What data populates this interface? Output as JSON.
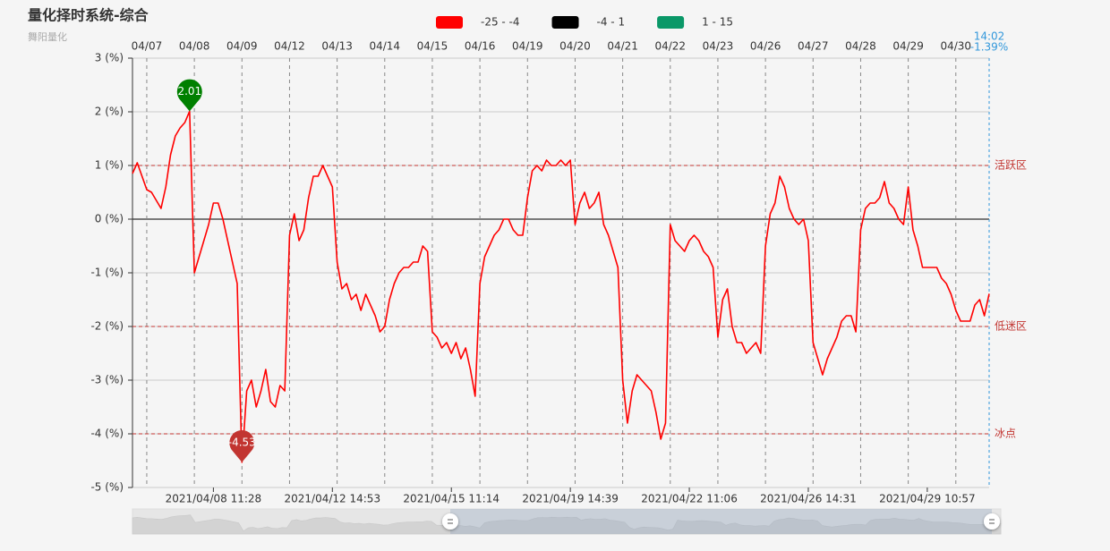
{
  "chart_data": {
    "type": "line",
    "title": "量化择时系统-综合",
    "subtitle": "舞阳量化",
    "categories": [
      null,
      null,
      null,
      null,
      null,
      null,
      null,
      null,
      null,
      null,
      null,
      null,
      null,
      null,
      null,
      null,
      null,
      "2021/04/08 11:28",
      null,
      null,
      null,
      null,
      null,
      null,
      null,
      null,
      null,
      null,
      null,
      null,
      null,
      null,
      null,
      null,
      null,
      null,
      null,
      null,
      null,
      null,
      null,
      null,
      "2021/04/12 14:53",
      null,
      null,
      null,
      null,
      null,
      null,
      null,
      null,
      null,
      null,
      null,
      null,
      null,
      null,
      null,
      null,
      null,
      null,
      null,
      null,
      null,
      null,
      null,
      null,
      "2021/04/15 11:14",
      null,
      null,
      null,
      null,
      null,
      null,
      null,
      null,
      null,
      null,
      null,
      null,
      null,
      null,
      null,
      null,
      null,
      null,
      null,
      null,
      null,
      null,
      null,
      null,
      "2021/04/19 14:39",
      null,
      null,
      null,
      null,
      null,
      null,
      null,
      null,
      null,
      null,
      null,
      null,
      null,
      null,
      null,
      null,
      null,
      null,
      null,
      null,
      null,
      null,
      null,
      null,
      "2021/04/22 11:06",
      null,
      null,
      null,
      null,
      null,
      null,
      null,
      null,
      null,
      null,
      null,
      null,
      null,
      null,
      null,
      null,
      null,
      null,
      null,
      null,
      null,
      null,
      null,
      null,
      "2021/04/26 14:31",
      null,
      null,
      null,
      null,
      null,
      null,
      null,
      null,
      null,
      null,
      null,
      null,
      null,
      null,
      null,
      null,
      null,
      null,
      null,
      null,
      null,
      null,
      null,
      null,
      "2021/04/29 10:57",
      null,
      null,
      null,
      null,
      null,
      null,
      null,
      null,
      null,
      null,
      null,
      null,
      null
    ],
    "day_labels": [
      null,
      null,
      null,
      "04/07",
      null,
      null,
      null,
      null,
      null,
      null,
      null,
      null,
      null,
      "04/08",
      null,
      null,
      null,
      null,
      null,
      null,
      null,
      null,
      null,
      "04/09",
      null,
      null,
      null,
      null,
      null,
      null,
      null,
      null,
      null,
      "04/12",
      null,
      null,
      null,
      null,
      null,
      null,
      null,
      null,
      null,
      "04/13",
      null,
      null,
      null,
      null,
      null,
      null,
      null,
      null,
      null,
      "04/14",
      null,
      null,
      null,
      null,
      null,
      null,
      null,
      null,
      null,
      "04/15",
      null,
      null,
      null,
      null,
      null,
      null,
      null,
      null,
      null,
      "04/16",
      null,
      null,
      null,
      null,
      null,
      null,
      null,
      null,
      null,
      "04/19",
      null,
      null,
      null,
      null,
      null,
      null,
      null,
      null,
      null,
      "04/20",
      null,
      null,
      null,
      null,
      null,
      null,
      null,
      null,
      null,
      "04/21",
      null,
      null,
      null,
      null,
      null,
      null,
      null,
      null,
      null,
      "04/22",
      null,
      null,
      null,
      null,
      null,
      null,
      null,
      null,
      null,
      "04/23",
      null,
      null,
      null,
      null,
      null,
      null,
      null,
      null,
      null,
      "04/26",
      null,
      null,
      null,
      null,
      null,
      null,
      null,
      null,
      null,
      "04/27",
      null,
      null,
      null,
      null,
      null,
      null,
      null,
      null,
      null,
      "04/28",
      null,
      null,
      null,
      null,
      null,
      null,
      null,
      null,
      null,
      "04/29",
      null,
      null,
      null,
      null,
      null,
      null,
      null,
      null,
      null,
      "04/30",
      null,
      null,
      null,
      null,
      null,
      null,
      null
    ],
    "values": [
      0.85,
      1.05,
      0.8,
      0.55,
      0.5,
      0.35,
      0.2,
      0.6,
      1.2,
      1.55,
      1.7,
      1.8,
      2.01,
      -1.0,
      -0.7,
      -0.4,
      -0.1,
      0.3,
      0.3,
      0.0,
      -0.4,
      -0.8,
      -1.2,
      -4.53,
      -3.2,
      -3.0,
      -3.5,
      -3.2,
      -2.8,
      -3.4,
      -3.5,
      -3.1,
      -3.2,
      -0.3,
      0.1,
      -0.4,
      -0.2,
      0.4,
      0.8,
      0.8,
      1.0,
      0.8,
      0.6,
      -0.8,
      -1.3,
      -1.2,
      -1.5,
      -1.4,
      -1.7,
      -1.4,
      -1.6,
      -1.8,
      -2.1,
      -2.0,
      -1.5,
      -1.2,
      -1.0,
      -0.9,
      -0.9,
      -0.8,
      -0.8,
      -0.5,
      -0.6,
      -2.1,
      -2.2,
      -2.4,
      -2.3,
      -2.5,
      -2.3,
      -2.6,
      -2.4,
      -2.8,
      -3.3,
      -1.2,
      -0.7,
      -0.5,
      -0.3,
      -0.2,
      0.0,
      0.0,
      -0.2,
      -0.3,
      -0.3,
      0.4,
      0.9,
      1.0,
      0.9,
      1.1,
      1.0,
      1.0,
      1.1,
      1.0,
      1.1,
      -0.1,
      0.3,
      0.5,
      0.2,
      0.3,
      0.5,
      -0.1,
      -0.3,
      -0.6,
      -0.9,
      -3.0,
      -3.8,
      -3.2,
      -2.9,
      -3.0,
      -3.1,
      -3.2,
      -3.6,
      -4.1,
      -3.8,
      -0.1,
      -0.4,
      -0.5,
      -0.6,
      -0.4,
      -0.3,
      -0.4,
      -0.6,
      -0.7,
      -0.9,
      -2.2,
      -1.5,
      -1.3,
      -2.0,
      -2.3,
      -2.3,
      -2.5,
      -2.4,
      -2.3,
      -2.5,
      -0.5,
      0.1,
      0.3,
      0.8,
      0.6,
      0.2,
      0.0,
      -0.1,
      0.0,
      -0.4,
      -2.3,
      -2.6,
      -2.9,
      -2.6,
      -2.4,
      -2.2,
      -1.9,
      -1.8,
      -1.8,
      -2.1,
      -0.2,
      0.2,
      0.3,
      0.3,
      0.4,
      0.7,
      0.3,
      0.2,
      0.0,
      -0.1,
      0.6,
      -0.2,
      -0.5,
      -0.9,
      -0.9,
      -0.9,
      -0.9,
      -1.1,
      -1.2,
      -1.4,
      -1.7,
      -1.9,
      -1.9,
      -1.9,
      -1.6,
      -1.5,
      -1.8,
      -1.39
    ],
    "ylim": [
      -5,
      3
    ],
    "yticks": [
      {
        "value": -5,
        "label": "-5 (%)"
      },
      {
        "value": -4,
        "label": "-4 (%)"
      },
      {
        "value": -3,
        "label": "-3 (%)"
      },
      {
        "value": -2,
        "label": "-2 (%)"
      },
      {
        "value": -1,
        "label": "-1 (%)"
      },
      {
        "value": 0,
        "label": "0 (%)"
      },
      {
        "value": 1,
        "label": "1 (%)"
      },
      {
        "value": 2,
        "label": "2 (%)"
      },
      {
        "value": 3,
        "label": "3 (%)"
      }
    ],
    "grid": true,
    "visual_map": [
      {
        "min": -25,
        "max": -4,
        "label": "-25 - -4",
        "color": "#ff0000"
      },
      {
        "min": -4,
        "max": 1,
        "label": "-4 - 1",
        "color": "#000000"
      },
      {
        "min": 1,
        "max": 15,
        "label": "1 - 15",
        "color": "#0a9868"
      }
    ],
    "mark_lines": [
      {
        "value": 1,
        "label": "活跃区"
      },
      {
        "value": -2,
        "label": "低迷区"
      },
      {
        "value": -4,
        "label": "冰点"
      }
    ],
    "mark_line_color": "#c23531",
    "mark_points": [
      {
        "type": "max",
        "color": "#008000"
      },
      {
        "type": "min",
        "color": "#c23531"
      }
    ],
    "latest": {
      "time": "14:02",
      "label": "-1.39%",
      "color": "#3398db"
    }
  }
}
